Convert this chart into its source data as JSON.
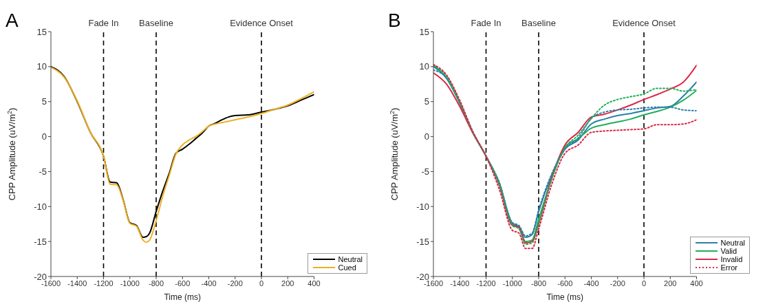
{
  "chart_data": [
    {
      "type": "line",
      "title": "A",
      "xlabel": "Time (ms)",
      "ylabel": "CPP Amplitude (uV/m$^{2}$)",
      "x": [
        -1600,
        -1500,
        -1400,
        -1300,
        -1200,
        -1150,
        -1100,
        -1050,
        -1000,
        -950,
        -900,
        -875,
        -850,
        -800,
        -750,
        -700,
        -650,
        -600,
        -550,
        -500,
        -450,
        -400,
        -350,
        -300,
        -250,
        -200,
        -100,
        0,
        100,
        200,
        300,
        400
      ],
      "series": [
        {
          "name": "Neutral",
          "color": "#000000",
          "values": [
            10,
            8.6,
            5.0,
            0.6,
            -2.8,
            -6.5,
            -6.6,
            -9.1,
            -12.3,
            -12.7,
            -14.4,
            -14.3,
            -13.8,
            -10.7,
            -7.8,
            -5.2,
            -2.4,
            -1.8,
            -1.1,
            -0.3,
            0.5,
            1.5,
            1.9,
            2.4,
            2.8,
            3.0,
            3.1,
            3.5,
            3.9,
            4.4,
            5.2,
            6.0
          ]
        },
        {
          "name": "Cued",
          "color": "#edb120",
          "values": [
            9.9,
            8.5,
            5.1,
            0.6,
            -2.8,
            -6.8,
            -6.9,
            -9.2,
            -12.4,
            -12.8,
            -14.8,
            -15.1,
            -14.8,
            -12.0,
            -8.5,
            -5.5,
            -2.5,
            -1.2,
            -0.5,
            0.0,
            0.7,
            1.5,
            1.8,
            2.0,
            2.2,
            2.4,
            2.8,
            3.3,
            3.9,
            4.5,
            5.4,
            6.4
          ]
        }
      ],
      "xlim": [
        -1600,
        400
      ],
      "xticks": [
        -1600,
        -1400,
        -1200,
        -1000,
        -800,
        -600,
        -400,
        -200,
        0,
        200,
        400
      ],
      "ylim": [
        -20,
        15
      ],
      "yticks": [
        -20,
        -15,
        -10,
        -5,
        0,
        5,
        10,
        15
      ],
      "ref_lines": [
        {
          "axis": "x",
          "value": -1200,
          "label": "Fade In",
          "color": "#000000",
          "line_style": "dashed"
        },
        {
          "axis": "x",
          "value": -800,
          "label": "Baseline",
          "color": "#000000",
          "line_style": "dashed"
        },
        {
          "axis": "x",
          "value": 0,
          "label": "Evidence Onset",
          "color": "#000000",
          "line_style": "dashed"
        }
      ],
      "grid": false,
      "legend": "bottom right",
      "marker": "none",
      "line_style": "solid"
    },
    {
      "type": "line",
      "title": "B",
      "xlabel": "Time (ms)",
      "ylabel": "CPP Amplitude (uV/m$^{2}$)",
      "x": [
        -1600,
        -1500,
        -1400,
        -1300,
        -1200,
        -1100,
        -1000,
        -950,
        -900,
        -850,
        -800,
        -700,
        -600,
        -500,
        -400,
        -300,
        -200,
        -100,
        0,
        100,
        200,
        300,
        400
      ],
      "series": [
        {
          "name": "Neutral",
          "color": "#2a7fa8",
          "values": [
            10,
            8.3,
            4.8,
            0.6,
            -2.8,
            -6.6,
            -12.4,
            -12.9,
            -14.4,
            -14.0,
            -10.7,
            -5.5,
            -1.8,
            -0.5,
            1.8,
            2.5,
            3.0,
            3.3,
            3.7,
            4.1,
            4.3,
            5.8,
            7.8
          ]
        },
        {
          "name": "Valid",
          "color": "#1fae5a",
          "values": [
            10.2,
            8.4,
            4.8,
            0.6,
            -2.8,
            -6.7,
            -12.6,
            -13.0,
            -15.0,
            -14.8,
            -11.8,
            -6.0,
            -1.5,
            -0.3,
            1.2,
            1.7,
            2.1,
            2.5,
            3.1,
            3.6,
            4.2,
            5.2,
            6.6
          ]
        },
        {
          "name": "Invalid",
          "color": "#dc2846",
          "values": [
            9.1,
            7.5,
            4.3,
            0.5,
            -2.8,
            -6.9,
            -12.7,
            -12.9,
            -15.2,
            -15.0,
            -12.5,
            -5.8,
            -1.2,
            0.6,
            2.8,
            3.2,
            3.8,
            4.5,
            5.3,
            6.0,
            6.8,
            7.8,
            10.2
          ]
        },
        {
          "color": "#2a7fa8",
          "line_style": "dotted",
          "values": [
            9.5,
            8.4,
            4.9,
            0.6,
            -2.8,
            -6.5,
            -12.3,
            -12.7,
            -14.2,
            -13.8,
            -10.5,
            -5.3,
            -1.8,
            -0.2,
            2.6,
            3.5,
            3.8,
            3.9,
            4.1,
            4.2,
            4.2,
            3.8,
            3.7
          ]
        },
        {
          "color": "#1fae5a",
          "line_style": "dotted",
          "values": [
            10.2,
            8.6,
            5.0,
            0.6,
            -2.8,
            -6.8,
            -12.7,
            -13.2,
            -15.4,
            -15.2,
            -12.5,
            -6.0,
            -1.6,
            0.2,
            2.6,
            4.5,
            5.3,
            5.7,
            6.1,
            6.9,
            6.9,
            6.5,
            6.7
          ]
        },
        {
          "name": "Error",
          "color": "#dc2846",
          "line_style": "dotted",
          "values": [
            10.3,
            8.8,
            5.2,
            0.7,
            -2.8,
            -7.5,
            -13.4,
            -13.8,
            -16.0,
            -16.0,
            -13.2,
            -6.8,
            -2.4,
            -1.2,
            0.6,
            0.8,
            0.9,
            1.0,
            1.1,
            1.7,
            1.7,
            1.8,
            2.4
          ]
        }
      ],
      "xlim": [
        -1600,
        400
      ],
      "xticks": [
        -1600,
        -1400,
        -1200,
        -1000,
        -800,
        -600,
        -400,
        -200,
        0,
        200,
        400
      ],
      "ylim": [
        -20,
        15
      ],
      "yticks": [
        -20,
        -15,
        -10,
        -5,
        0,
        5,
        10,
        15
      ],
      "ref_lines": [
        {
          "axis": "x",
          "value": -1200,
          "label": "Fade In",
          "color": "#000000",
          "line_style": "dashed"
        },
        {
          "axis": "x",
          "value": -800,
          "label": "Baseline",
          "color": "#000000",
          "line_style": "dashed"
        },
        {
          "axis": "x",
          "value": 0,
          "label": "Evidence Onset",
          "color": "#000000",
          "line_style": "dashed"
        }
      ],
      "grid": false,
      "legend": "bottom right",
      "marker": "none",
      "line_style": "solid"
    }
  ]
}
